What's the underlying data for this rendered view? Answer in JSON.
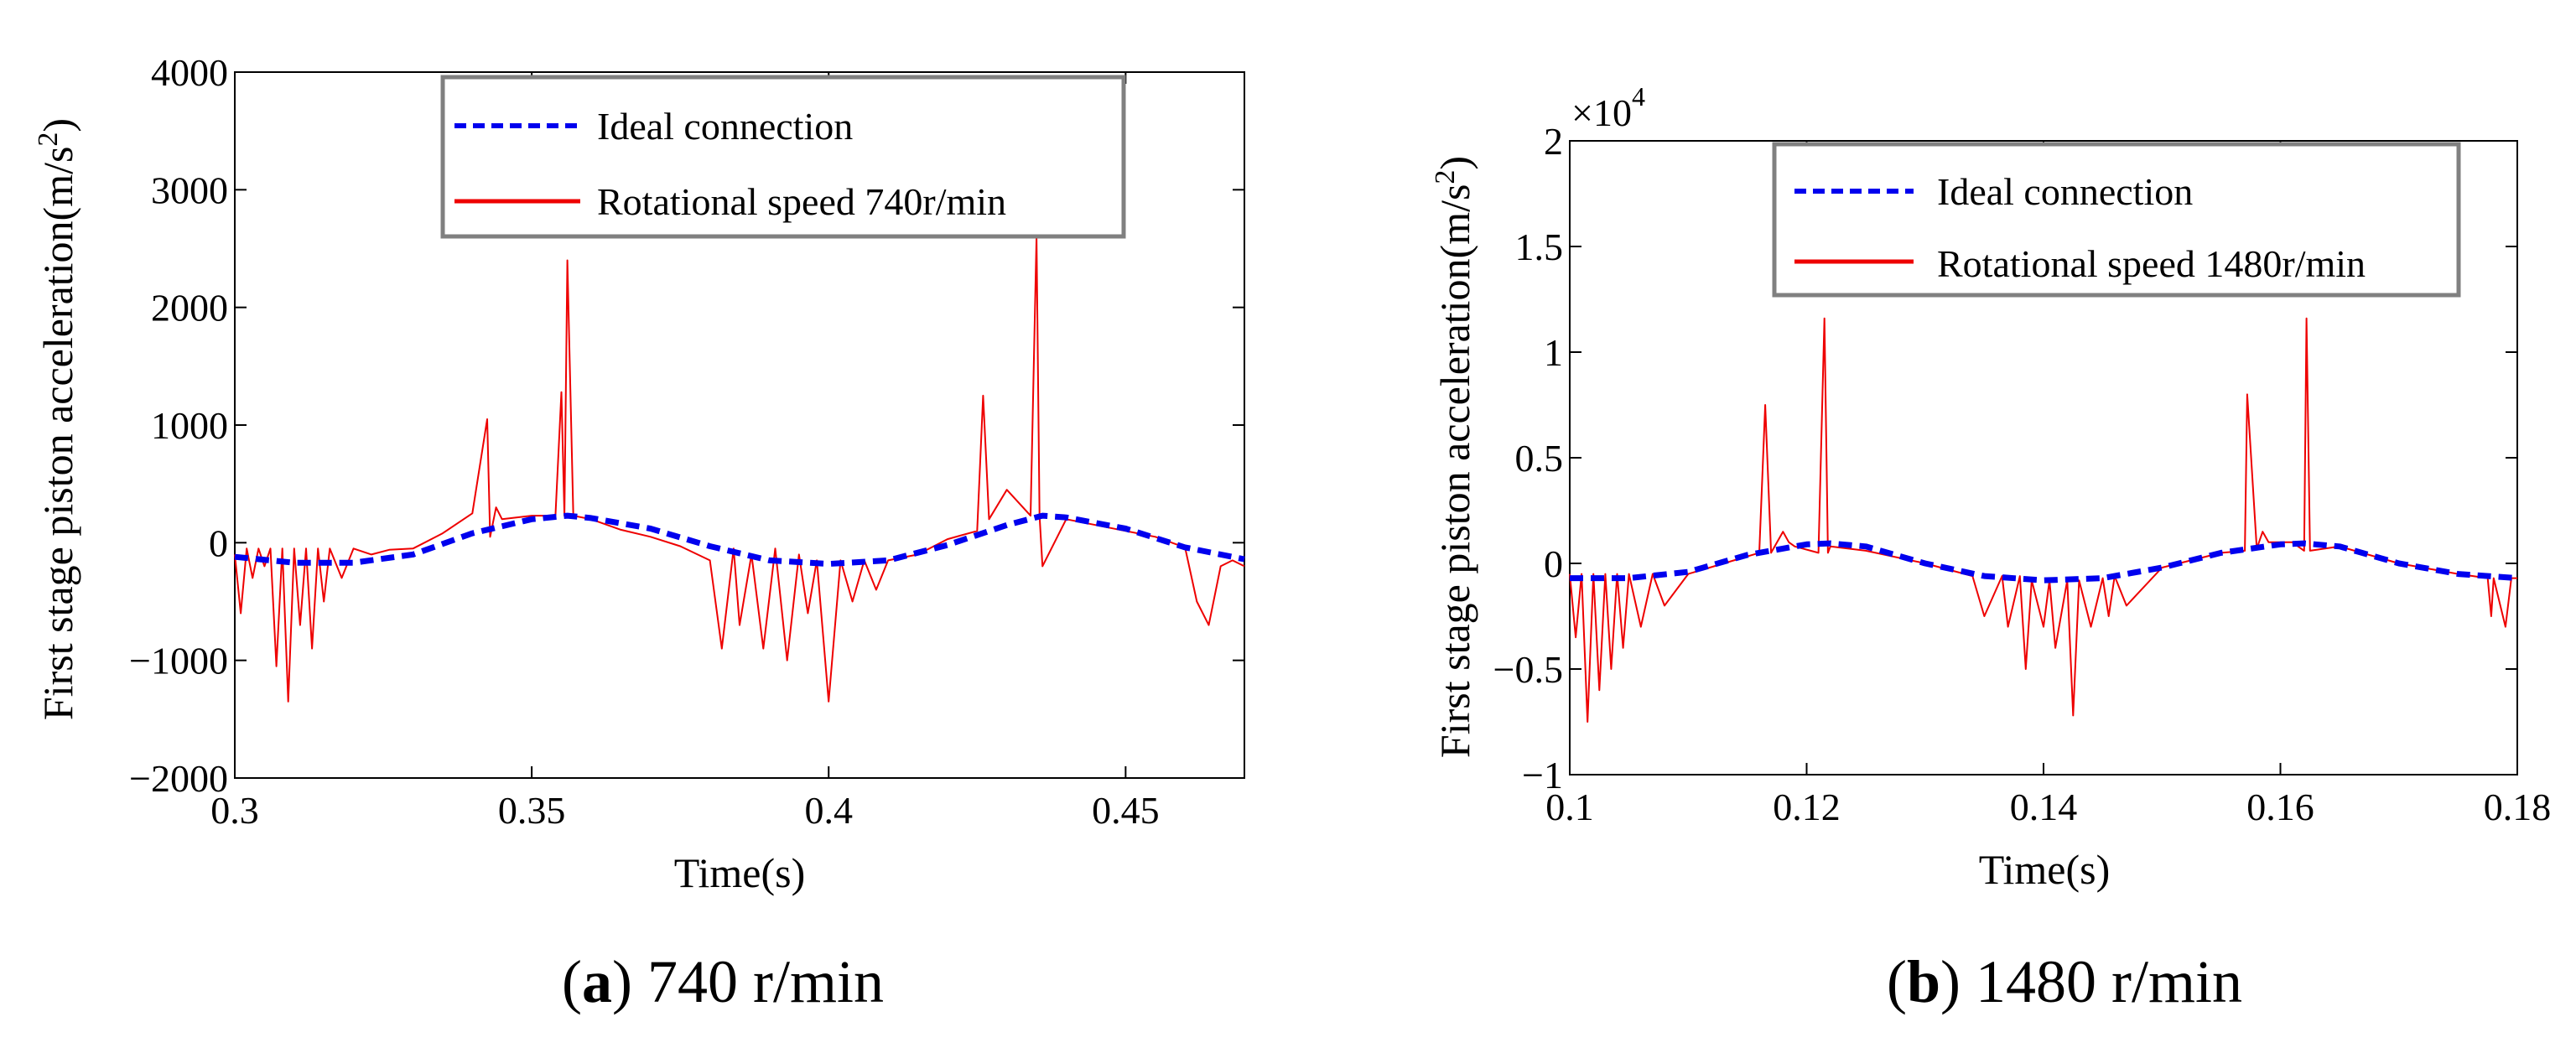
{
  "chart_data": [
    {
      "type": "line",
      "caption_letter": "a",
      "caption_text": "740 r/min",
      "xlabel": "Time(s)",
      "ylabel_main": "First stage piston acceleration(m/s",
      "ylabel_sup": "2",
      "ylabel_end": ")",
      "xlim": [
        0.3,
        0.47
      ],
      "ylim": [
        -2000,
        4000
      ],
      "xticks": [
        0.3,
        0.35,
        0.4,
        0.45
      ],
      "xtick_labels": [
        "0.3",
        "0.35",
        "0.4",
        "0.45"
      ],
      "yticks": [
        -2000,
        -1000,
        0,
        1000,
        2000,
        3000,
        4000
      ],
      "ytick_labels": [
        "−2000",
        "−1000",
        "0",
        "1000",
        "2000",
        "3000",
        "4000"
      ],
      "legend_position": "top-right",
      "series": [
        {
          "name": "Ideal connection",
          "color": "#0000ee",
          "style": "dashed",
          "x": [
            0.3,
            0.31,
            0.32,
            0.33,
            0.34,
            0.35,
            0.356,
            0.36,
            0.37,
            0.38,
            0.39,
            0.4,
            0.41,
            0.42,
            0.43,
            0.436,
            0.44,
            0.45,
            0.46,
            0.47
          ],
          "y": [
            -120,
            -170,
            -170,
            -100,
            80,
            200,
            230,
            210,
            120,
            -30,
            -150,
            -180,
            -150,
            -20,
            150,
            230,
            215,
            120,
            -40,
            -140
          ]
        },
        {
          "name": "Rotational speed 740r/min",
          "color": "#ee0000",
          "style": "solid",
          "x": [
            0.3,
            0.301,
            0.302,
            0.303,
            0.304,
            0.305,
            0.306,
            0.307,
            0.308,
            0.309,
            0.31,
            0.311,
            0.312,
            0.313,
            0.314,
            0.315,
            0.316,
            0.318,
            0.32,
            0.323,
            0.326,
            0.33,
            0.335,
            0.34,
            0.3425,
            0.343,
            0.344,
            0.345,
            0.35,
            0.354,
            0.355,
            0.3555,
            0.356,
            0.357,
            0.36,
            0.365,
            0.37,
            0.375,
            0.38,
            0.382,
            0.384,
            0.385,
            0.387,
            0.389,
            0.391,
            0.393,
            0.395,
            0.3965,
            0.398,
            0.4,
            0.402,
            0.404,
            0.406,
            0.408,
            0.41,
            0.415,
            0.42,
            0.425,
            0.426,
            0.427,
            0.43,
            0.434,
            0.435,
            0.4355,
            0.436,
            0.44,
            0.45,
            0.455,
            0.46,
            0.462,
            0.464,
            0.466,
            0.468,
            0.47
          ],
          "y": [
            -100,
            -600,
            -50,
            -300,
            -50,
            -200,
            -50,
            -1050,
            -50,
            -1350,
            -50,
            -700,
            -50,
            -900,
            -50,
            -500,
            -50,
            -300,
            -50,
            -100,
            -60,
            -50,
            80,
            250,
            1050,
            50,
            300,
            200,
            230,
            230,
            1280,
            230,
            2400,
            230,
            200,
            110,
            50,
            -30,
            -150,
            -900,
            -50,
            -700,
            -100,
            -900,
            -50,
            -1000,
            -100,
            -600,
            -150,
            -1350,
            -150,
            -500,
            -150,
            -400,
            -150,
            -100,
            30,
            100,
            1250,
            200,
            450,
            230,
            2600,
            230,
            -200,
            200,
            100,
            50,
            -40,
            -500,
            -700,
            -200,
            -150,
            -200
          ]
        }
      ]
    },
    {
      "type": "line",
      "caption_letter": "b",
      "caption_text": "1480 r/min",
      "xlabel": "Time(s)",
      "ylabel_main": "First stage piston acceleration(m/s",
      "ylabel_sup": "2",
      "ylabel_end": ")",
      "y_multiplier_base": "×10",
      "y_multiplier_exp": "4",
      "xlim": [
        0.1,
        0.18
      ],
      "ylim": [
        -1,
        2
      ],
      "xticks": [
        0.1,
        0.12,
        0.14,
        0.16,
        0.18
      ],
      "xtick_labels": [
        "0.1",
        "0.12",
        "0.14",
        "0.16",
        "0.18"
      ],
      "yticks": [
        -1,
        -0.5,
        0,
        0.5,
        1,
        1.5,
        2
      ],
      "ytick_labels": [
        "−1",
        "−0.5",
        "0",
        "0.5",
        "1",
        "1.5",
        "2"
      ],
      "legend_position": "top-right",
      "series": [
        {
          "name": "Ideal connection",
          "color": "#0000ee",
          "style": "dashed",
          "x": [
            0.1,
            0.105,
            0.11,
            0.115,
            0.12,
            0.122,
            0.125,
            0.13,
            0.135,
            0.14,
            0.145,
            0.15,
            0.155,
            0.16,
            0.162,
            0.165,
            0.17,
            0.175,
            0.18
          ],
          "y": [
            -0.07,
            -0.07,
            -0.04,
            0.04,
            0.09,
            0.095,
            0.08,
            0.0,
            -0.06,
            -0.08,
            -0.07,
            -0.02,
            0.05,
            0.09,
            0.095,
            0.08,
            0.0,
            -0.05,
            -0.07
          ]
        },
        {
          "name": "Rotational speed 1480r/min",
          "color": "#ee0000",
          "style": "solid",
          "x": [
            0.1,
            0.1005,
            0.101,
            0.1015,
            0.102,
            0.1025,
            0.103,
            0.1035,
            0.104,
            0.1045,
            0.105,
            0.106,
            0.107,
            0.108,
            0.11,
            0.113,
            0.116,
            0.1165,
            0.117,
            0.118,
            0.1185,
            0.119,
            0.121,
            0.1215,
            0.1218,
            0.122,
            0.125,
            0.13,
            0.134,
            0.135,
            0.1365,
            0.137,
            0.138,
            0.1385,
            0.139,
            0.14,
            0.1405,
            0.141,
            0.142,
            0.1425,
            0.143,
            0.144,
            0.145,
            0.1455,
            0.146,
            0.147,
            0.15,
            0.155,
            0.157,
            0.1572,
            0.158,
            0.1585,
            0.159,
            0.161,
            0.162,
            0.1622,
            0.1625,
            0.165,
            0.17,
            0.175,
            0.1775,
            0.1778,
            0.178,
            0.179,
            0.1795,
            0.18
          ],
          "y": [
            -0.05,
            -0.35,
            -0.05,
            -0.75,
            -0.05,
            -0.6,
            -0.05,
            -0.5,
            -0.05,
            -0.4,
            -0.05,
            -0.3,
            -0.05,
            -0.2,
            -0.05,
            0.0,
            0.05,
            0.75,
            0.05,
            0.15,
            0.1,
            0.08,
            0.05,
            1.16,
            0.05,
            0.08,
            0.06,
            0.0,
            -0.06,
            -0.25,
            -0.06,
            -0.3,
            -0.06,
            -0.5,
            -0.08,
            -0.3,
            -0.08,
            -0.4,
            -0.08,
            -0.72,
            -0.08,
            -0.3,
            -0.07,
            -0.25,
            -0.06,
            -0.2,
            -0.02,
            0.05,
            0.06,
            0.8,
            0.07,
            0.15,
            0.1,
            0.1,
            0.06,
            1.16,
            0.06,
            0.08,
            0.0,
            -0.05,
            -0.07,
            -0.25,
            -0.07,
            -0.3,
            -0.07,
            -0.07
          ]
        }
      ]
    }
  ]
}
